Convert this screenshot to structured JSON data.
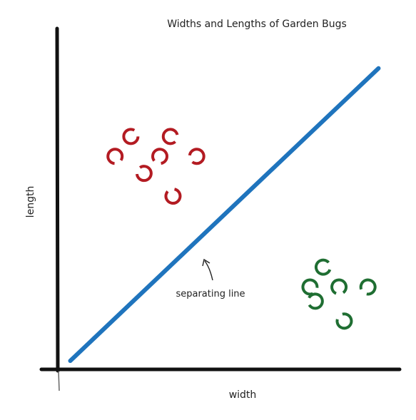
{
  "chart_data": {
    "type": "scatter",
    "title": "Widths and Lengths of Garden Bugs",
    "xlabel": "width",
    "ylabel": "length",
    "series": [
      {
        "color": "#b31b22",
        "points": [
          [
            2.8,
            8.2
          ],
          [
            4.3,
            8.2
          ],
          [
            2.2,
            7.5
          ],
          [
            3.9,
            7.5
          ],
          [
            5.3,
            7.5
          ],
          [
            3.3,
            6.9
          ],
          [
            4.4,
            6.1
          ]
        ]
      },
      {
        "color": "#1f6e32",
        "points": [
          [
            10.1,
            3.6
          ],
          [
            9.6,
            2.9
          ],
          [
            10.7,
            2.9
          ],
          [
            11.8,
            2.9
          ],
          [
            9.8,
            2.4
          ],
          [
            10.9,
            1.7
          ]
        ]
      }
    ],
    "separator": {
      "color": "#1f74bd",
      "points": [
        [
          0.5,
          0.3
        ],
        [
          12.2,
          10.6
        ]
      ]
    },
    "annotation": {
      "text": "separating line",
      "arrow_to": [
        5.8,
        4.0
      ]
    },
    "xlim": [
      0,
      13
    ],
    "ylim": [
      0,
      12
    ],
    "grid": false,
    "legend": "none"
  }
}
